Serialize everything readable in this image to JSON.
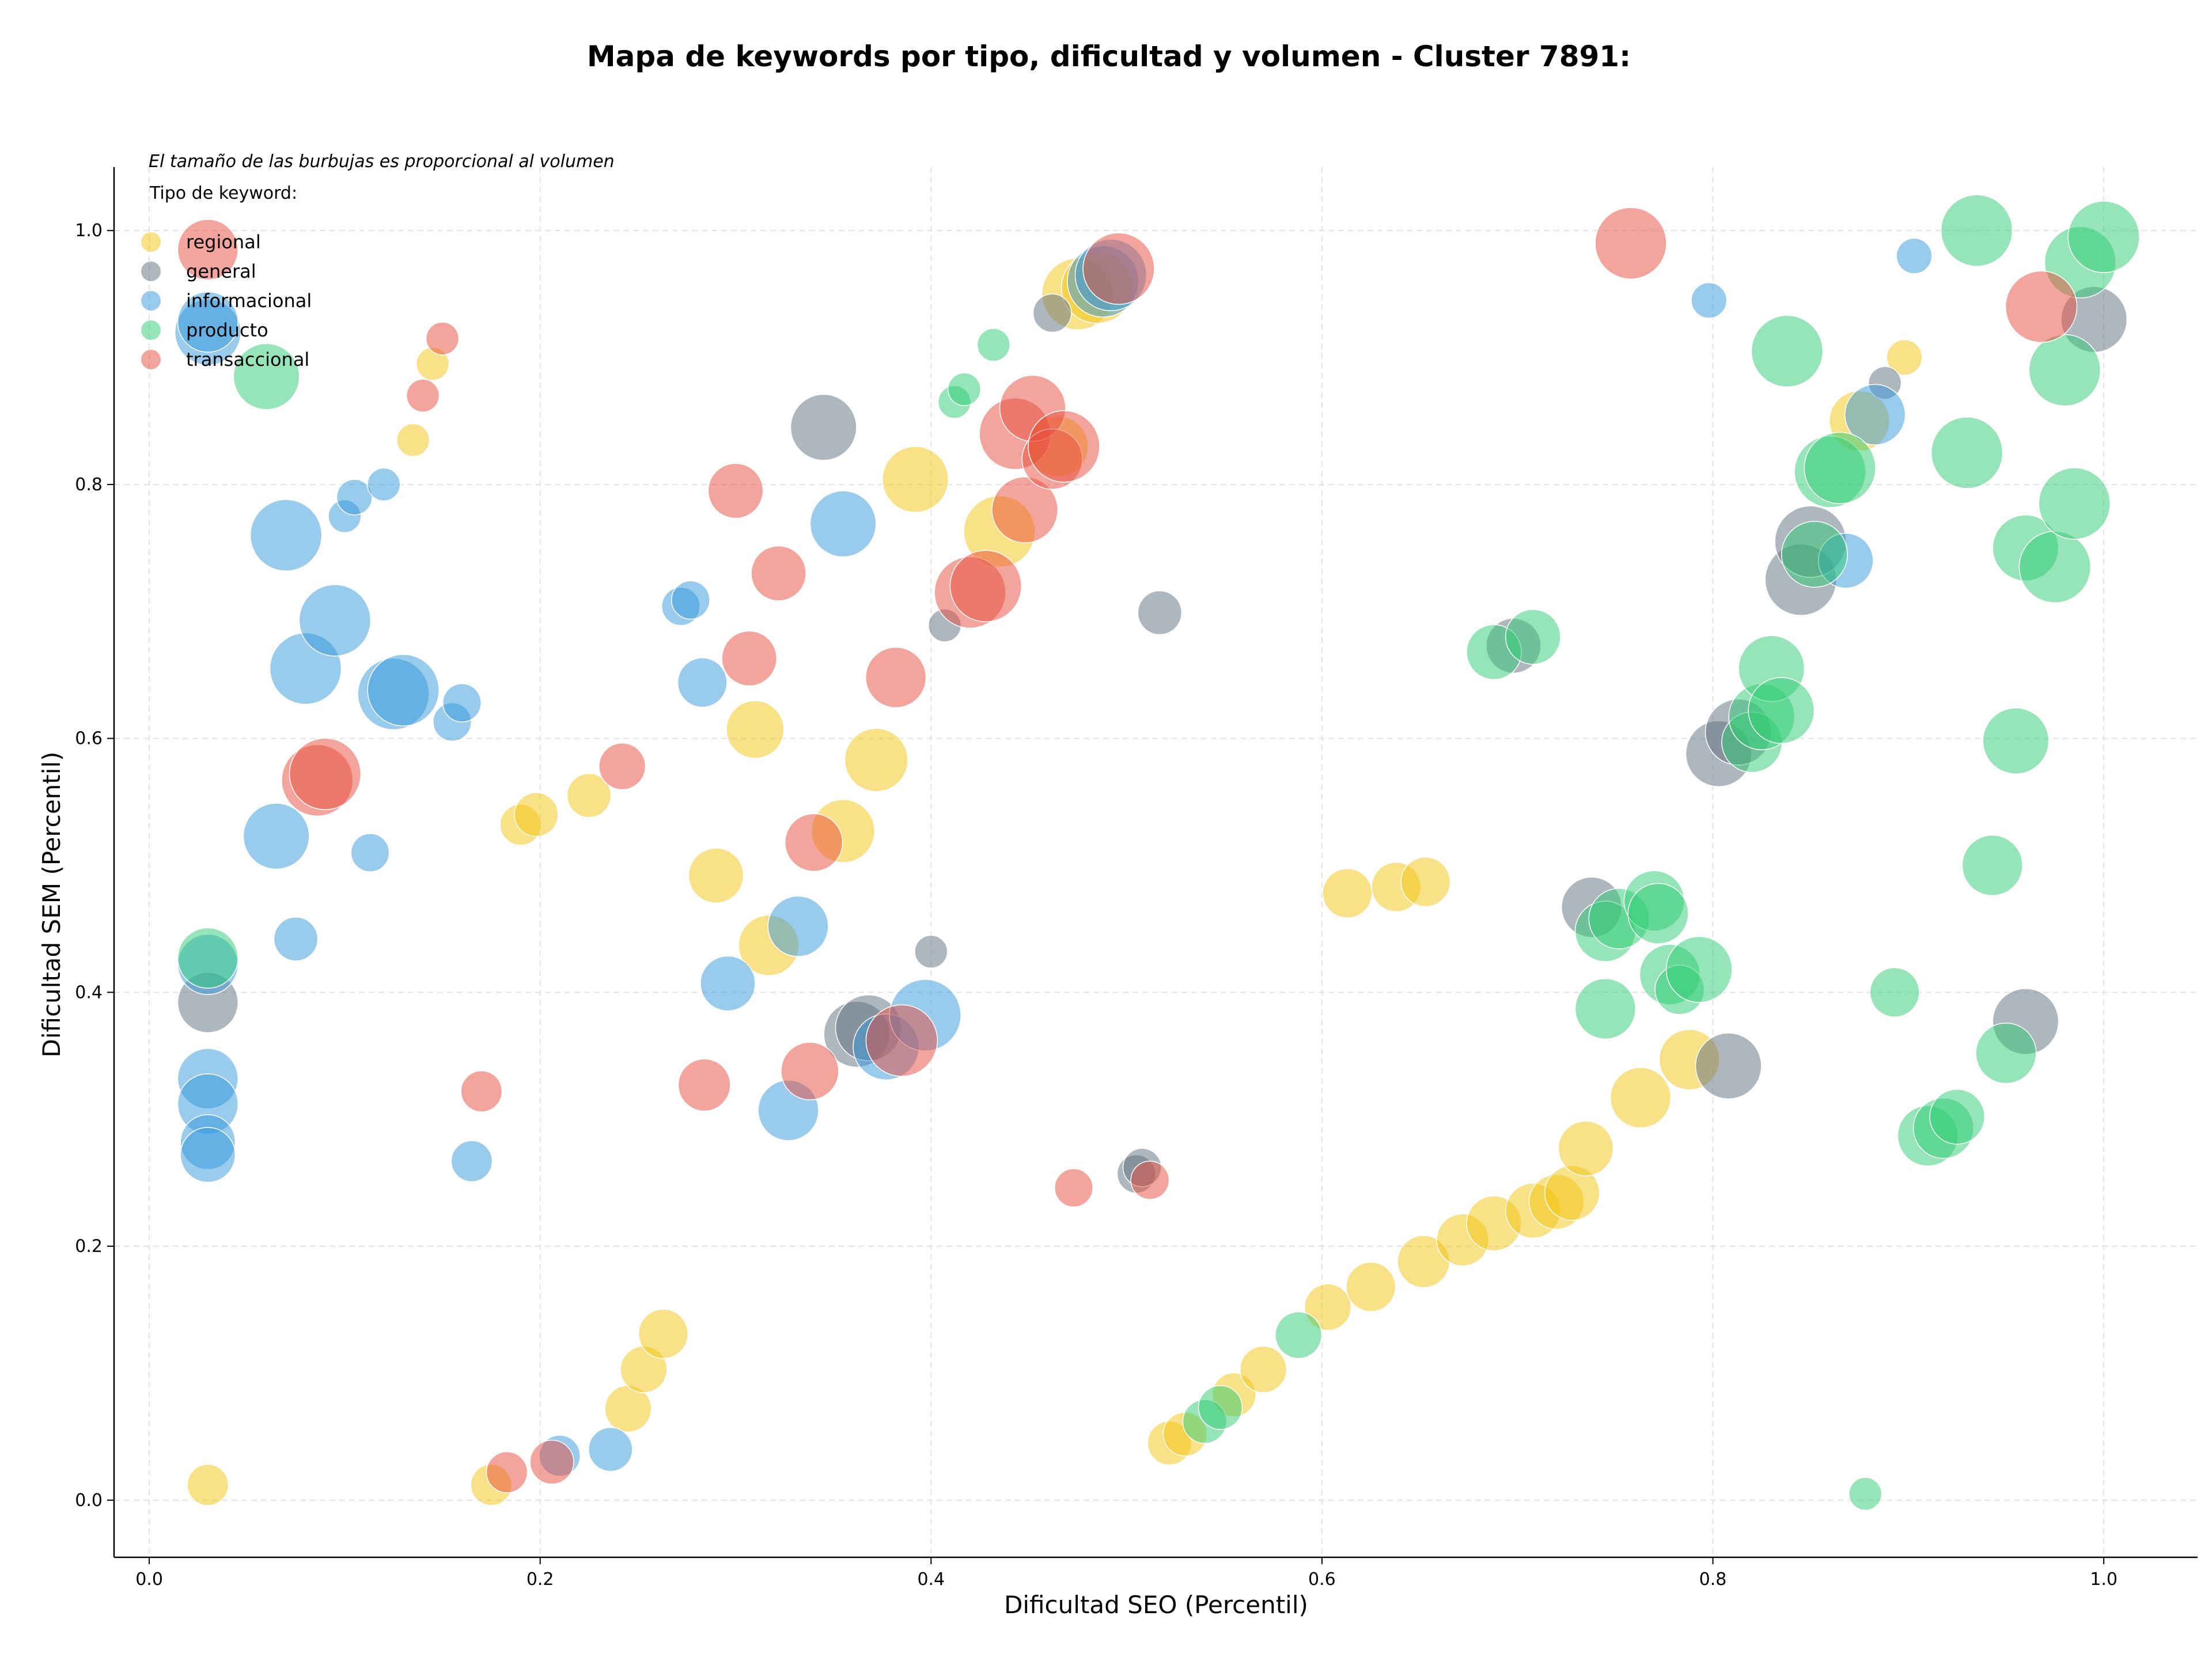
{
  "chart_data": {
    "type": "scatter",
    "title": "Mapa de keywords por tipo, dificultad y volumen - Cluster 7891:",
    "xlabel": "Dificultad SEO (Percentil)",
    "ylabel": "Dificultad SEM (Percentil)",
    "xlim": [
      -0.018,
      1.048
    ],
    "ylim": [
      -0.045,
      1.05
    ],
    "xticks": [
      "0.0",
      "0.2",
      "0.4",
      "0.6",
      "0.8",
      "1.0"
    ],
    "yticks": [
      "0.0",
      "0.2",
      "0.4",
      "0.6",
      "0.8",
      "1.0"
    ],
    "grid": true,
    "size_note": "El tamaño de las burbujas es proporcional al volumen",
    "legend_title": "Tipo de keyword:",
    "legend_position": "top-left",
    "series": [
      {
        "name": "regional",
        "color": "#f1c40f",
        "points": [
          [
            0.03,
            0.012,
            0.45
          ],
          [
            0.145,
            0.895,
            0.3
          ],
          [
            0.135,
            0.835,
            0.3
          ],
          [
            0.19,
            0.532,
            0.45
          ],
          [
            0.198,
            0.54,
            0.5
          ],
          [
            0.225,
            0.555,
            0.5
          ],
          [
            0.175,
            0.012,
            0.45
          ],
          [
            0.245,
            0.072,
            0.55
          ],
          [
            0.253,
            0.103,
            0.55
          ],
          [
            0.263,
            0.131,
            0.6
          ],
          [
            0.29,
            0.492,
            0.7
          ],
          [
            0.31,
            0.607,
            0.75
          ],
          [
            0.317,
            0.437,
            0.8
          ],
          [
            0.355,
            0.527,
            0.85
          ],
          [
            0.372,
            0.583,
            0.85
          ],
          [
            0.392,
            0.804,
            0.9
          ],
          [
            0.435,
            0.763,
            1.0
          ],
          [
            0.475,
            0.95,
            1.0
          ],
          [
            0.485,
            0.955,
            1.0
          ],
          [
            0.465,
            0.83,
            0.8
          ],
          [
            0.613,
            0.478,
            0.6
          ],
          [
            0.638,
            0.483,
            0.6
          ],
          [
            0.653,
            0.487,
            0.6
          ],
          [
            0.522,
            0.045,
            0.5
          ],
          [
            0.53,
            0.052,
            0.5
          ],
          [
            0.555,
            0.083,
            0.5
          ],
          [
            0.57,
            0.103,
            0.55
          ],
          [
            0.603,
            0.152,
            0.55
          ],
          [
            0.625,
            0.168,
            0.6
          ],
          [
            0.652,
            0.188,
            0.65
          ],
          [
            0.672,
            0.205,
            0.65
          ],
          [
            0.688,
            0.218,
            0.7
          ],
          [
            0.708,
            0.228,
            0.7
          ],
          [
            0.72,
            0.235,
            0.7
          ],
          [
            0.728,
            0.242,
            0.7
          ],
          [
            0.735,
            0.277,
            0.7
          ],
          [
            0.763,
            0.317,
            0.8
          ],
          [
            0.788,
            0.347,
            0.8
          ],
          [
            0.875,
            0.85,
            0.8
          ],
          [
            0.898,
            0.9,
            0.35
          ]
        ]
      },
      {
        "name": "general",
        "color": "#5d6d7e",
        "points": [
          [
            0.03,
            0.392,
            0.8
          ],
          [
            0.345,
            0.845,
            0.9
          ],
          [
            0.362,
            0.367,
            0.9
          ],
          [
            0.368,
            0.372,
            0.9
          ],
          [
            0.4,
            0.432,
            0.3
          ],
          [
            0.407,
            0.689,
            0.3
          ],
          [
            0.462,
            0.935,
            0.4
          ],
          [
            0.505,
            0.257,
            0.4
          ],
          [
            0.508,
            0.262,
            0.4
          ],
          [
            0.517,
            0.699,
            0.5
          ],
          [
            0.698,
            0.673,
            0.7
          ],
          [
            0.738,
            0.467,
            0.8
          ],
          [
            0.803,
            0.588,
            0.9
          ],
          [
            0.808,
            0.342,
            0.9
          ],
          [
            0.813,
            0.605,
            0.9
          ],
          [
            0.845,
            0.725,
            1.0
          ],
          [
            0.85,
            0.755,
            1.0
          ],
          [
            0.888,
            0.88,
            0.3
          ],
          [
            0.96,
            0.377,
            0.9
          ],
          [
            0.995,
            0.93,
            0.9
          ]
        ]
      },
      {
        "name": "informacional",
        "color": "#3498db",
        "points": [
          [
            0.03,
            0.92,
            0.9
          ],
          [
            0.03,
            0.928,
            0.8
          ],
          [
            0.03,
            0.332,
            0.8
          ],
          [
            0.03,
            0.312,
            0.8
          ],
          [
            0.03,
            0.282,
            0.7
          ],
          [
            0.03,
            0.272,
            0.7
          ],
          [
            0.03,
            0.422,
            0.8
          ],
          [
            0.065,
            0.523,
            0.9
          ],
          [
            0.07,
            0.76,
            1.0
          ],
          [
            0.075,
            0.442,
            0.5
          ],
          [
            0.08,
            0.655,
            1.0
          ],
          [
            0.095,
            0.693,
            1.0
          ],
          [
            0.1,
            0.775,
            0.3
          ],
          [
            0.105,
            0.79,
            0.35
          ],
          [
            0.113,
            0.51,
            0.4
          ],
          [
            0.12,
            0.8,
            0.3
          ],
          [
            0.125,
            0.635,
            1.0
          ],
          [
            0.13,
            0.638,
            1.0
          ],
          [
            0.155,
            0.613,
            0.4
          ],
          [
            0.16,
            0.628,
            0.4
          ],
          [
            0.165,
            0.267,
            0.45
          ],
          [
            0.21,
            0.035,
            0.45
          ],
          [
            0.236,
            0.04,
            0.5
          ],
          [
            0.272,
            0.704,
            0.4
          ],
          [
            0.277,
            0.709,
            0.4
          ],
          [
            0.283,
            0.644,
            0.6
          ],
          [
            0.296,
            0.407,
            0.7
          ],
          [
            0.327,
            0.307,
            0.8
          ],
          [
            0.332,
            0.452,
            0.8
          ],
          [
            0.355,
            0.769,
            0.9
          ],
          [
            0.377,
            0.357,
            0.9
          ],
          [
            0.397,
            0.382,
            1.0
          ],
          [
            0.488,
            0.96,
            1.0
          ],
          [
            0.492,
            0.965,
            1.0
          ],
          [
            0.798,
            0.945,
            0.35
          ],
          [
            0.868,
            0.74,
            0.7
          ],
          [
            0.883,
            0.855,
            0.8
          ],
          [
            0.903,
            0.98,
            0.35
          ]
        ]
      },
      {
        "name": "producto",
        "color": "#2ecc71",
        "points": [
          [
            0.03,
            0.427,
            0.8
          ],
          [
            0.06,
            0.885,
            0.9
          ],
          [
            0.412,
            0.865,
            0.3
          ],
          [
            0.417,
            0.875,
            0.3
          ],
          [
            0.432,
            0.91,
            0.3
          ],
          [
            0.54,
            0.062,
            0.5
          ],
          [
            0.548,
            0.073,
            0.5
          ],
          [
            0.588,
            0.13,
            0.55
          ],
          [
            0.688,
            0.668,
            0.7
          ],
          [
            0.708,
            0.68,
            0.7
          ],
          [
            0.745,
            0.387,
            0.8
          ],
          [
            0.745,
            0.448,
            0.8
          ],
          [
            0.752,
            0.458,
            0.8
          ],
          [
            0.77,
            0.472,
            0.8
          ],
          [
            0.772,
            0.462,
            0.8
          ],
          [
            0.778,
            0.414,
            0.8
          ],
          [
            0.783,
            0.402,
            0.6
          ],
          [
            0.793,
            0.418,
            0.9
          ],
          [
            0.82,
            0.597,
            0.8
          ],
          [
            0.825,
            0.617,
            0.9
          ],
          [
            0.83,
            0.655,
            0.9
          ],
          [
            0.835,
            0.622,
            0.9
          ],
          [
            0.838,
            0.905,
            1.0
          ],
          [
            0.852,
            0.745,
            0.9
          ],
          [
            0.86,
            0.81,
            1.0
          ],
          [
            0.865,
            0.813,
            1.0
          ],
          [
            0.878,
            0.005,
            0.3
          ],
          [
            0.893,
            0.4,
            0.6
          ],
          [
            0.91,
            0.287,
            0.8
          ],
          [
            0.918,
            0.293,
            0.8
          ],
          [
            0.925,
            0.302,
            0.7
          ],
          [
            0.93,
            0.825,
            1.0
          ],
          [
            0.935,
            1.0,
            1.0
          ],
          [
            0.943,
            0.5,
            0.8
          ],
          [
            0.95,
            0.352,
            0.8
          ],
          [
            0.955,
            0.598,
            0.9
          ],
          [
            0.96,
            0.75,
            0.9
          ],
          [
            0.975,
            0.735,
            1.0
          ],
          [
            0.98,
            0.89,
            1.0
          ],
          [
            0.985,
            0.785,
            1.0
          ],
          [
            0.988,
            0.975,
            1.0
          ],
          [
            1.0,
            0.995,
            1.0
          ]
        ]
      },
      {
        "name": "transaccional",
        "color": "#e74c3c",
        "points": [
          [
            0.03,
            0.985,
            0.8
          ],
          [
            0.086,
            0.567,
            1.0
          ],
          [
            0.09,
            0.572,
            1.0
          ],
          [
            0.14,
            0.87,
            0.3
          ],
          [
            0.15,
            0.915,
            0.3
          ],
          [
            0.17,
            0.322,
            0.45
          ],
          [
            0.183,
            0.022,
            0.45
          ],
          [
            0.206,
            0.03,
            0.5
          ],
          [
            0.242,
            0.578,
            0.55
          ],
          [
            0.284,
            0.327,
            0.65
          ],
          [
            0.3,
            0.795,
            0.7
          ],
          [
            0.307,
            0.663,
            0.7
          ],
          [
            0.322,
            0.73,
            0.7
          ],
          [
            0.34,
            0.518,
            0.75
          ],
          [
            0.338,
            0.338,
            0.75
          ],
          [
            0.382,
            0.648,
            0.8
          ],
          [
            0.385,
            0.362,
            1.0
          ],
          [
            0.42,
            0.715,
            1.0
          ],
          [
            0.428,
            0.72,
            1.0
          ],
          [
            0.443,
            0.84,
            1.0
          ],
          [
            0.448,
            0.78,
            0.9
          ],
          [
            0.452,
            0.86,
            0.9
          ],
          [
            0.462,
            0.82,
            0.8
          ],
          [
            0.468,
            0.83,
            1.0
          ],
          [
            0.473,
            0.246,
            0.4
          ],
          [
            0.496,
            0.97,
            1.0
          ],
          [
            0.512,
            0.252,
            0.4
          ],
          [
            0.758,
            0.99,
            1.0
          ],
          [
            0.968,
            0.94,
            1.0
          ]
        ]
      }
    ]
  }
}
